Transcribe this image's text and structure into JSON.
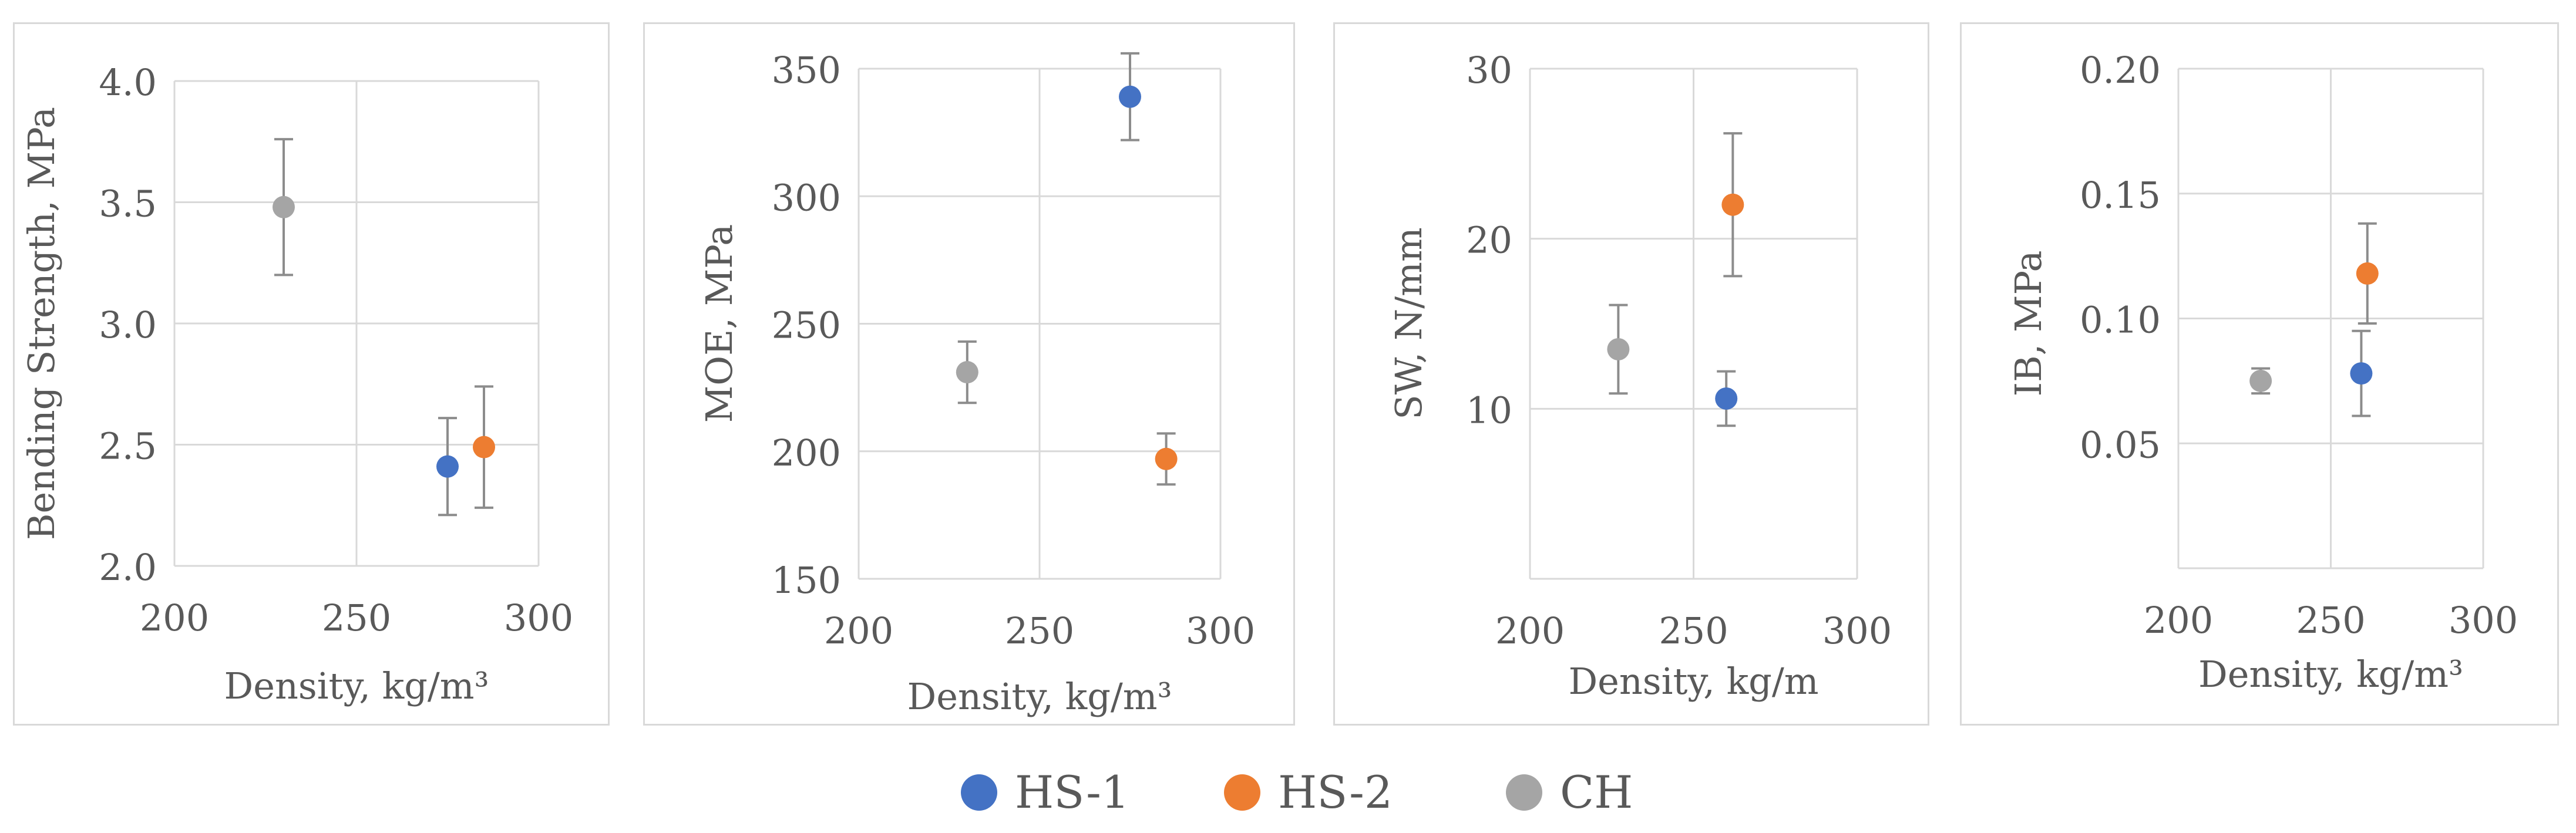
{
  "colors": {
    "HS-1": "#4472c4",
    "HS-2": "#ed7d31",
    "CH": "#a5a5a5"
  },
  "legend": [
    {
      "name": "HS-1",
      "color": "#4472c4"
    },
    {
      "name": "HS-2",
      "color": "#ed7d31"
    },
    {
      "name": "CH",
      "color": "#a5a5a5"
    }
  ],
  "chart_data": [
    {
      "type": "scatter",
      "title": "",
      "xlabel": "Density, kg/m³",
      "ylabel": "Bending Strength, MPa",
      "xlim": [
        200,
        300
      ],
      "ylim": [
        2.0,
        4.0
      ],
      "xticks": [
        "200",
        "250",
        "300"
      ],
      "yticks": [
        "2.0",
        "2.5",
        "3.0",
        "3.5",
        "4.0"
      ],
      "grid": true,
      "series": [
        {
          "name": "HS-1",
          "x": 275,
          "y": 2.41,
          "err": 0.2
        },
        {
          "name": "HS-2",
          "x": 285,
          "y": 2.49,
          "err": 0.25
        },
        {
          "name": "CH",
          "x": 230,
          "y": 3.48,
          "err": 0.28
        }
      ]
    },
    {
      "type": "scatter",
      "title": "",
      "xlabel": "Density, kg/m³",
      "ylabel": "MOE, MPa",
      "xlim": [
        200,
        300
      ],
      "ylim": [
        150,
        350
      ],
      "xticks": [
        "200",
        "250",
        "300"
      ],
      "yticks": [
        "150",
        "200",
        "250",
        "300",
        "350"
      ],
      "grid": true,
      "series": [
        {
          "name": "HS-1",
          "x": 275,
          "y": 339,
          "err": 17
        },
        {
          "name": "HS-2",
          "x": 285,
          "y": 197,
          "err": 10
        },
        {
          "name": "CH",
          "x": 230,
          "y": 231,
          "err": 12
        }
      ]
    },
    {
      "type": "scatter",
      "title": "",
      "xlabel": "Density, kg/m",
      "ylabel": "SW, N/mm",
      "xlim": [
        200,
        300
      ],
      "ylim": [
        0,
        30
      ],
      "xticks": [
        "200",
        "250",
        "300"
      ],
      "yticks": [
        "",
        "10",
        "20",
        "30"
      ],
      "grid": true,
      "series": [
        {
          "name": "HS-1",
          "x": 260,
          "y": 10.6,
          "err": 1.6
        },
        {
          "name": "HS-2",
          "x": 262,
          "y": 22.0,
          "err": 4.2
        },
        {
          "name": "CH",
          "x": 227,
          "y": 13.5,
          "err": 2.6
        }
      ]
    },
    {
      "type": "scatter",
      "title": "",
      "xlabel": "Density, kg/m³",
      "ylabel": "IB, MPa",
      "xlim": [
        200,
        300
      ],
      "ylim": [
        0,
        0.2
      ],
      "xticks": [
        "200",
        "250",
        "300"
      ],
      "yticks": [
        "",
        "0.05",
        "0.10",
        "0.15",
        "0.20"
      ],
      "grid": true,
      "series": [
        {
          "name": "HS-1",
          "x": 260,
          "y": 0.078,
          "err": 0.017
        },
        {
          "name": "HS-2",
          "x": 262,
          "y": 0.118,
          "err": 0.02
        },
        {
          "name": "CH",
          "x": 227,
          "y": 0.075,
          "err": 0.005
        }
      ]
    }
  ]
}
